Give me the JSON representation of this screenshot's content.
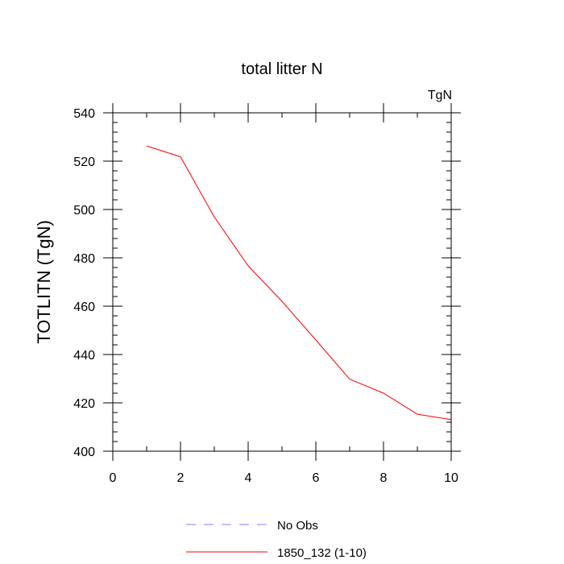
{
  "chart_data": {
    "type": "line",
    "title": "total litter N",
    "units_label": "TgN",
    "xlabel": "",
    "ylabel": "TOTLITN  (TgN)",
    "xlim": [
      0,
      10
    ],
    "ylim": [
      400,
      540
    ],
    "x_ticks": [
      0,
      2,
      4,
      6,
      8,
      10
    ],
    "y_ticks": [
      400,
      420,
      440,
      460,
      480,
      500,
      520,
      540
    ],
    "grid": false,
    "legend_position": "bottom",
    "series": [
      {
        "name": "No Obs",
        "color": "#8080ff",
        "dash": "dashed",
        "x": [],
        "y": []
      },
      {
        "name": "1850_132 (1-10)",
        "color": "#ff0000",
        "dash": "solid",
        "x": [
          1,
          2,
          3,
          4,
          5,
          6,
          7,
          8,
          9,
          10
        ],
        "y": [
          526.3,
          521.8,
          496.9,
          476.7,
          462.0,
          446.0,
          429.8,
          424.0,
          415.3,
          413.1
        ]
      }
    ]
  }
}
